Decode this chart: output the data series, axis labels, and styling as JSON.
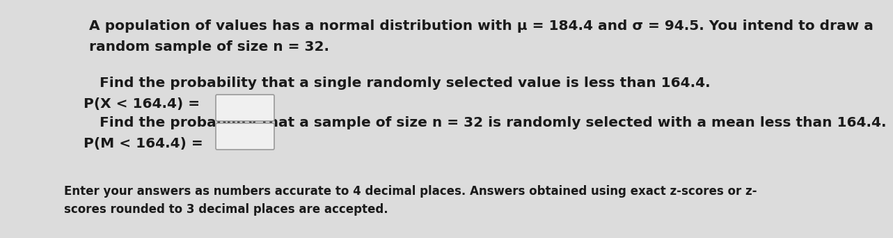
{
  "bg_color": "#dcdcdc",
  "text_color": "#1a1a1a",
  "line1": "A population of values has a normal distribution with μ = 184.4 and σ = 94.5. You intend to draw a",
  "line2": "random sample of size n = 32.",
  "line3": "Find the probability that a single randomly selected value is less than 164.4.",
  "line4": "P(X < 164.4) =",
  "line5": "Find the probability that a sample of size n = 32 is randomly selected with a mean less than 164.4.",
  "line6": "P(M < 164.4) =",
  "line7": "Enter your answers as numbers accurate to 4 decimal places. Answers obtained using exact z-scores or z-",
  "line8": "scores rounded to 3 decimal places are accepted.",
  "box_color": "#f0f0f0",
  "box_edge_color": "#999999",
  "font_size_main": 14.5,
  "font_size_small": 12.0,
  "indent1": 0.095,
  "indent2": 0.108,
  "indent3": 0.062
}
